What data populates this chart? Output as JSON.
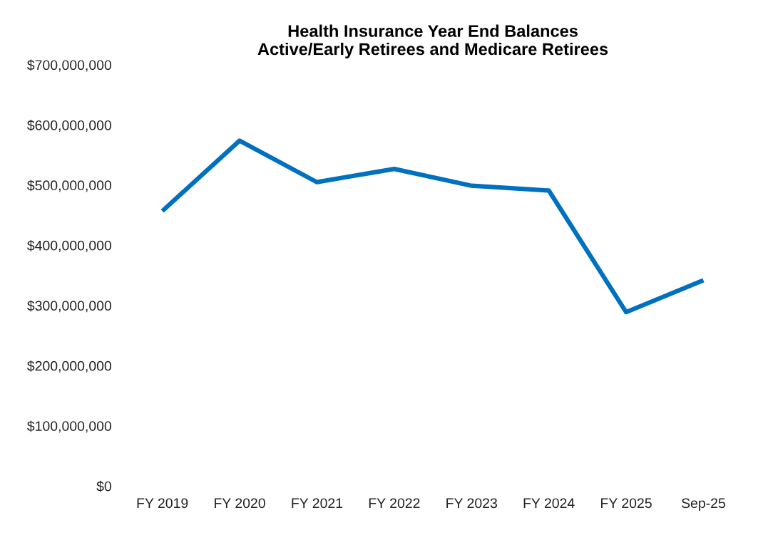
{
  "chart_data": {
    "type": "line",
    "title": "Health Insurance Year End Balances\nActive/Early Retirees and Medicare Retirees",
    "categories": [
      "FY 2019",
      "FY 2020",
      "FY 2021",
      "FY 2022",
      "FY 2023",
      "FY 2024",
      "FY 2025",
      "Sep-25"
    ],
    "series": [
      {
        "color": "#0070c0",
        "values": [
          457000000,
          574000000,
          505000000,
          527000000,
          499000000,
          491000000,
          289000000,
          342000000
        ]
      }
    ],
    "ylim": [
      0,
      700000000
    ],
    "yticks": [
      {
        "value": 0,
        "label": "$0"
      },
      {
        "value": 100000000,
        "label": "$100,000,000"
      },
      {
        "value": 200000000,
        "label": "$200,000,000"
      },
      {
        "value": 300000000,
        "label": "$300,000,000"
      },
      {
        "value": 400000000,
        "label": "$400,000,000"
      },
      {
        "value": 500000000,
        "label": "$500,000,000"
      },
      {
        "value": 600000000,
        "label": "$600,000,000"
      },
      {
        "value": 700000000,
        "label": "$700,000,000"
      }
    ],
    "marker": "none",
    "line_style": "solid"
  }
}
